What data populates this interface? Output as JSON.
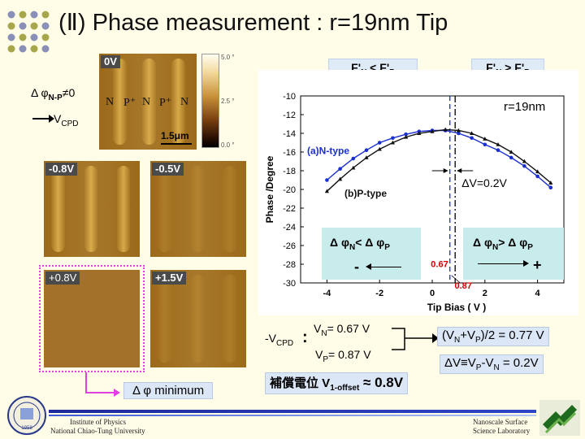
{
  "slide": {
    "title": "(Ⅱ) Phase measurement : r=19nm Tip"
  },
  "afm_images": {
    "top_image": {
      "label": "0V",
      "stripe_labels": [
        "N",
        "P⁺",
        "N",
        "P⁺",
        "N"
      ],
      "scale_bar": "1.5μm"
    },
    "colorbar_ticks": [
      "5.0 °",
      "2.5 °",
      "0.0 °"
    ],
    "grid": [
      {
        "label": "-0.8V"
      },
      {
        "label": "-0.5V"
      },
      {
        "label": "+0.8V"
      },
      {
        "label": "+1.5V"
      }
    ]
  },
  "left_annot": {
    "delta_phi": "Δ φ",
    "delta_phi_sub": "N-P",
    "delta_phi_rel": "≠0",
    "vcpd_prefix": "V",
    "vcpd_sub": "CPD"
  },
  "header_boxes": {
    "left": {
      "a": "F'",
      "a_sub": "N",
      "op": " < ",
      "b": "F'",
      "b_sub": "P"
    },
    "right": {
      "a": "F'",
      "a_sub": "N",
      "op": " > ",
      "b": "F'",
      "b_sub": "P"
    }
  },
  "chart_data": {
    "type": "line",
    "xlabel": "Tip Bias ( V )",
    "ylabel": "Phase /Degree",
    "xlim": [
      -5,
      5
    ],
    "ylim": [
      -30,
      -10
    ],
    "xticks": [
      -4,
      -2,
      0,
      2,
      4
    ],
    "yticks": [
      -10,
      -12,
      -14,
      -16,
      -18,
      -20,
      -22,
      -24,
      -26,
      -28,
      -30
    ],
    "xtick_labels": [
      "-4",
      "-2",
      "0",
      "2",
      "4"
    ],
    "ytick_labels": [
      "-10",
      "-12",
      "-14",
      "-16",
      "-18",
      "-20",
      "-22",
      "-24",
      "-26",
      "-28",
      "-30"
    ],
    "series": [
      {
        "name": "(a)N-type",
        "color": "#1a2fd0",
        "x": [
          -4.0,
          -3.5,
          -3.0,
          -2.5,
          -2.0,
          -1.5,
          -1.0,
          -0.5,
          0.0,
          0.5,
          1.0,
          1.5,
          2.0,
          2.5,
          3.0,
          3.5,
          4.0,
          4.5
        ],
        "values": [
          -19.0,
          -17.8,
          -16.7,
          -15.8,
          -15.0,
          -14.5,
          -14.1,
          -13.8,
          -13.7,
          -13.7,
          -14.0,
          -14.5,
          -15.2,
          -15.8,
          -16.6,
          -17.5,
          -18.6,
          -19.8
        ]
      },
      {
        "name": "(b)P-type",
        "color": "#111111",
        "x": [
          -4.0,
          -3.5,
          -3.0,
          -2.5,
          -2.0,
          -1.5,
          -1.0,
          -0.5,
          0.0,
          0.5,
          1.0,
          1.5,
          2.0,
          2.5,
          3.0,
          3.5,
          4.0,
          4.5
        ],
        "values": [
          -20.2,
          -18.9,
          -17.7,
          -16.6,
          -15.7,
          -15.0,
          -14.4,
          -14.0,
          -13.8,
          -13.6,
          -13.7,
          -14.0,
          -14.6,
          -15.2,
          -16.0,
          -17.0,
          -18.1,
          -19.3
        ]
      }
    ],
    "annotations": {
      "radius": "r=19nm",
      "delta_v": "ΔV=0.2V",
      "vline_n": 0.67,
      "vline_p": 0.87,
      "vline_n_label": "0.67",
      "vline_p_label": "0.87"
    }
  },
  "phi_boxes": {
    "left": {
      "a": "Δ φ",
      "a_sub": "N",
      "op": "< ",
      "b": "Δ φ",
      "b_sub": "P",
      "sign": "-"
    },
    "right": {
      "a": "Δ φ",
      "a_sub": "N",
      "op": "> ",
      "b": "Δ φ",
      "b_sub": "P",
      "sign": "+"
    }
  },
  "results": {
    "neg_vcpd": "-V",
    "neg_vcpd_sub": "CPD",
    "colon": ":",
    "vn": "V",
    "vn_sub": "N",
    "vn_val": "= 0.67 V",
    "vp": "V",
    "vp_sub": "P",
    "vp_val": "= 0.87 V",
    "avg_a": "(V",
    "avg_sub1": "N",
    "avg_b": "+V",
    "avg_sub2": "P",
    "avg_c": ")/2 = 0.77 V",
    "diff_a": "ΔV≡V",
    "diff_sub1": "P",
    "diff_b": "-V",
    "diff_sub2": "N",
    "diff_c": " = 0.2V",
    "offset_a": "補償電位 V",
    "offset_sub": "1-offset",
    "offset_b": " ≈ 0.8V",
    "min_label": "Δ φ  minimum"
  },
  "footer": {
    "left_line1": "Institute of Physics",
    "left_line2": "National Chiao-Tung University",
    "right_line1": "Nanoscale Surface",
    "right_line2": "Science Laboratory",
    "logo_text": "1958"
  },
  "colors": {
    "background": "#fffde8",
    "highlight_pink": "#e040e0",
    "red_label": "#d00000"
  }
}
